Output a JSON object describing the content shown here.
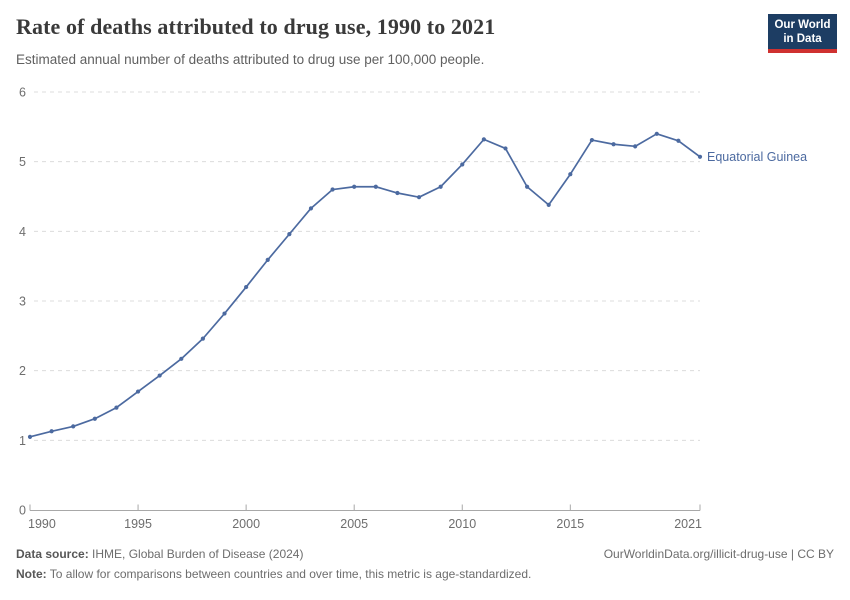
{
  "header": {
    "title": "Rate of deaths attributed to drug use, 1990 to 2021",
    "subtitle": "Estimated annual number of deaths attributed to drug use per 100,000 people."
  },
  "logo": {
    "line1": "Our World",
    "line2": "in Data"
  },
  "chart_data": {
    "type": "line",
    "title": "Rate of deaths attributed to drug use, 1990 to 2021",
    "xlabel": "",
    "ylabel": "",
    "x": [
      1990,
      1991,
      1992,
      1993,
      1994,
      1995,
      1996,
      1997,
      1998,
      1999,
      2000,
      2001,
      2002,
      2003,
      2004,
      2005,
      2006,
      2007,
      2008,
      2009,
      2010,
      2011,
      2012,
      2013,
      2014,
      2015,
      2016,
      2017,
      2018,
      2019,
      2020,
      2021
    ],
    "series": [
      {
        "name": "Equatorial Guinea",
        "values": [
          1.05,
          1.13,
          1.2,
          1.31,
          1.47,
          1.7,
          1.93,
          2.17,
          2.46,
          2.82,
          3.2,
          3.59,
          3.96,
          4.33,
          4.6,
          4.64,
          4.64,
          4.55,
          4.49,
          4.64,
          4.96,
          5.32,
          5.19,
          4.64,
          4.38,
          4.82,
          5.31,
          5.25,
          5.22,
          5.4,
          5.3,
          5.07
        ]
      }
    ],
    "entity_label": "Equatorial Guinea",
    "ylim": [
      0,
      6
    ],
    "yticks": [
      0,
      1,
      2,
      3,
      4,
      5,
      6
    ],
    "xticks": [
      1990,
      1995,
      2000,
      2005,
      2010,
      2015,
      2021
    ],
    "grid": "horizontal-dashed",
    "legend_position": "end-of-line-label",
    "line_color": "#4c6aa0",
    "label_color": "#4c6aa0",
    "axis_color": "#a8a8a8",
    "grid_color": "#dcdcdc",
    "tick_label_color": "#6e6e6e"
  },
  "footer": {
    "source_label": "Data source:",
    "source_text": " IHME, Global Burden of Disease (2024)",
    "rights": "OurWorldinData.org/illicit-drug-use | CC BY",
    "note_label": "Note:",
    "note_text": " To allow for comparisons between countries and over time, this metric is age-standardized."
  }
}
